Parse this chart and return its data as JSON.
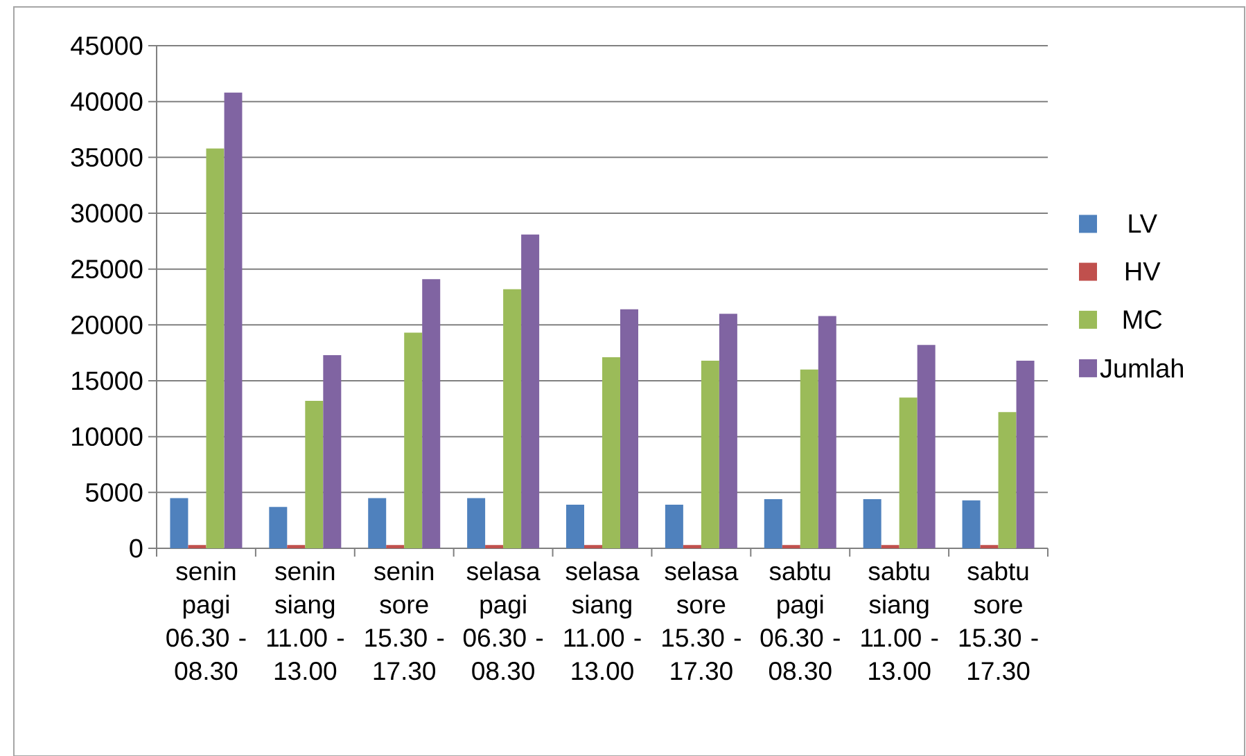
{
  "chart_data": {
    "type": "bar",
    "categories": [
      "senin pagi 06.30 - 08.30",
      "senin siang 11.00 - 13.00",
      "senin sore 15.30 - 17.30",
      "selasa pagi 06.30 - 08.30",
      "selasa siang 11.00 - 13.00",
      "selasa sore 15.30 - 17.30",
      "sabtu pagi 06.30 - 08.30",
      "sabtu siang 11.00 - 13.00",
      "sabtu sore 15.30 - 17.30"
    ],
    "series": [
      {
        "name": "LV",
        "color": "#4f81bd",
        "values": [
          4500,
          3700,
          4500,
          4500,
          3900,
          3900,
          4400,
          4400,
          4300
        ]
      },
      {
        "name": "HV",
        "color": "#c0504d",
        "values": [
          300,
          300,
          300,
          300,
          300,
          300,
          300,
          300,
          300
        ]
      },
      {
        "name": "MC",
        "color": "#9bbb59",
        "values": [
          35800,
          13200,
          19300,
          23200,
          17100,
          16800,
          16000,
          13500,
          12200
        ]
      },
      {
        "name": "Jumlah",
        "color": "#8064a2",
        "values": [
          40800,
          17300,
          24100,
          28100,
          21400,
          21000,
          20800,
          18200,
          16800
        ]
      }
    ],
    "ylim": [
      0,
      45000
    ],
    "yticks": [
      0,
      5000,
      10000,
      15000,
      20000,
      25000,
      30000,
      35000,
      40000,
      45000
    ],
    "grid": "y",
    "legend": "right"
  }
}
